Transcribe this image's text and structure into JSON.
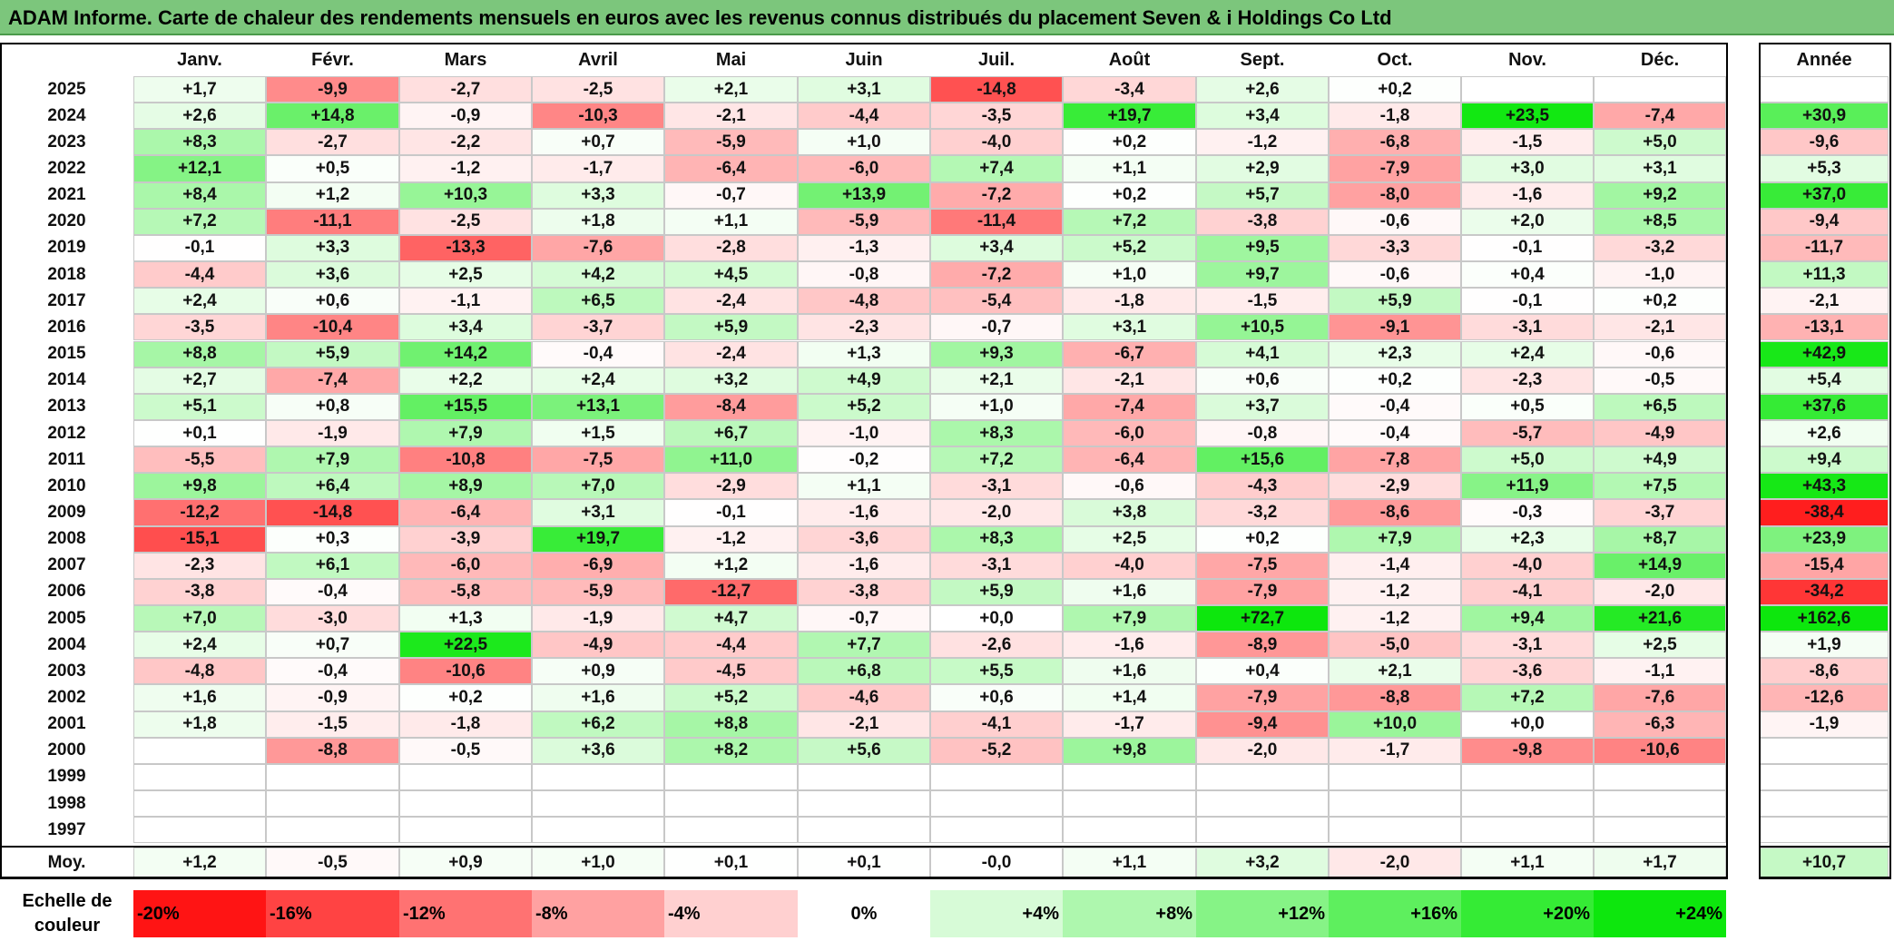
{
  "title": "ADAM Informe. Carte de chaleur des rendements mensuels en euros avec les revenus connus distribués du placement Seven & i Holdings Co Ltd",
  "chart_data": {
    "type": "heatmap",
    "columns": [
      "Janv.",
      "Févr.",
      "Mars",
      "Avril",
      "Mai",
      "Juin",
      "Juil.",
      "Août",
      "Sept.",
      "Oct.",
      "Nov.",
      "Déc."
    ],
    "annual_header": "Année",
    "rows": [
      {
        "year": "2025",
        "values": [
          1.7,
          -9.9,
          -2.7,
          -2.5,
          2.1,
          3.1,
          -14.8,
          -3.4,
          2.6,
          0.2,
          null,
          null
        ],
        "annual": null
      },
      {
        "year": "2024",
        "values": [
          2.6,
          14.8,
          -0.9,
          -10.3,
          -2.1,
          -4.4,
          -3.5,
          19.7,
          3.4,
          -1.8,
          23.5,
          -7.4
        ],
        "annual": 30.9
      },
      {
        "year": "2023",
        "values": [
          8.3,
          -2.7,
          -2.2,
          0.7,
          -5.9,
          1.0,
          -4.0,
          0.2,
          -1.2,
          -6.8,
          -1.5,
          5.0
        ],
        "annual": -9.6
      },
      {
        "year": "2022",
        "values": [
          12.1,
          0.5,
          -1.2,
          -1.7,
          -6.4,
          -6.0,
          7.4,
          1.1,
          2.9,
          -7.9,
          3.0,
          3.1
        ],
        "annual": 5.3
      },
      {
        "year": "2021",
        "values": [
          8.4,
          1.2,
          10.3,
          3.3,
          -0.7,
          13.9,
          -7.2,
          0.2,
          5.7,
          -8.0,
          -1.6,
          9.2
        ],
        "annual": 37.0
      },
      {
        "year": "2020",
        "values": [
          7.2,
          -11.1,
          -2.5,
          1.8,
          1.1,
          -5.9,
          -11.4,
          7.2,
          -3.8,
          -0.6,
          2.0,
          8.5
        ],
        "annual": -9.4
      },
      {
        "year": "2019",
        "values": [
          -0.1,
          3.3,
          -13.3,
          -7.6,
          -2.8,
          -1.3,
          3.4,
          5.2,
          9.5,
          -3.3,
          -0.1,
          -3.2
        ],
        "annual": -11.7
      },
      {
        "year": "2018",
        "values": [
          -4.4,
          3.6,
          2.5,
          4.2,
          4.5,
          -0.8,
          -7.2,
          1.0,
          9.7,
          -0.6,
          0.4,
          -1.0
        ],
        "annual": 11.3
      },
      {
        "year": "2017",
        "values": [
          2.4,
          0.6,
          -1.1,
          6.5,
          -2.4,
          -4.8,
          -5.4,
          -1.8,
          -1.5,
          5.9,
          -0.1,
          0.2
        ],
        "annual": -2.1
      },
      {
        "year": "2016",
        "values": [
          -3.5,
          -10.4,
          3.4,
          -3.7,
          5.9,
          -2.3,
          -0.7,
          3.1,
          10.5,
          -9.1,
          -3.1,
          -2.1
        ],
        "annual": -13.1
      },
      {
        "year": "2015",
        "values": [
          8.8,
          5.9,
          14.2,
          -0.4,
          -2.4,
          1.3,
          9.3,
          -6.7,
          4.1,
          2.3,
          2.4,
          -0.6
        ],
        "annual": 42.9
      },
      {
        "year": "2014",
        "values": [
          2.7,
          -7.4,
          2.2,
          2.4,
          3.2,
          4.9,
          2.1,
          -2.1,
          0.6,
          0.2,
          -2.3,
          -0.5
        ],
        "annual": 5.4
      },
      {
        "year": "2013",
        "values": [
          5.1,
          0.8,
          15.5,
          13.1,
          -8.4,
          5.2,
          1.0,
          -7.4,
          3.7,
          -0.4,
          0.5,
          6.5
        ],
        "annual": 37.6
      },
      {
        "year": "2012",
        "values": [
          0.1,
          -1.9,
          7.9,
          1.5,
          6.7,
          -1.0,
          8.3,
          -6.0,
          -0.8,
          -0.4,
          -5.7,
          -4.9
        ],
        "annual": 2.6
      },
      {
        "year": "2011",
        "values": [
          -5.5,
          7.9,
          -10.8,
          -7.5,
          11.0,
          -0.2,
          7.2,
          -6.4,
          15.6,
          -7.8,
          5.0,
          4.9
        ],
        "annual": 9.4
      },
      {
        "year": "2010",
        "values": [
          9.8,
          6.4,
          8.9,
          7.0,
          -2.9,
          1.1,
          -3.1,
          -0.6,
          -4.3,
          -2.9,
          11.9,
          7.5
        ],
        "annual": 43.3
      },
      {
        "year": "2009",
        "values": [
          -12.2,
          -14.8,
          -6.4,
          3.1,
          -0.1,
          -1.6,
          -2.0,
          3.8,
          -3.2,
          -8.6,
          -0.3,
          -3.7
        ],
        "annual": -38.4
      },
      {
        "year": "2008",
        "values": [
          -15.1,
          0.3,
          -3.9,
          19.7,
          -1.2,
          -3.6,
          8.3,
          2.5,
          0.2,
          7.9,
          2.3,
          8.7
        ],
        "annual": 23.9
      },
      {
        "year": "2007",
        "values": [
          -2.3,
          6.1,
          -6.0,
          -6.9,
          1.2,
          -1.6,
          -3.1,
          -4.0,
          -7.5,
          -1.4,
          -4.0,
          14.9
        ],
        "annual": -15.4
      },
      {
        "year": "2006",
        "values": [
          -3.8,
          -0.4,
          -5.8,
          -5.9,
          -12.7,
          -3.8,
          5.9,
          1.6,
          -7.9,
          -1.2,
          -4.1,
          -2.0
        ],
        "annual": -34.2
      },
      {
        "year": "2005",
        "values": [
          7.0,
          -3.0,
          1.3,
          -1.9,
          4.7,
          -0.7,
          0.0,
          7.9,
          72.7,
          -1.2,
          9.4,
          21.6
        ],
        "annual": 162.6
      },
      {
        "year": "2004",
        "values": [
          2.4,
          0.7,
          22.5,
          -4.9,
          -4.4,
          7.7,
          -2.6,
          -1.6,
          -8.9,
          -5.0,
          -3.1,
          2.5
        ],
        "annual": 1.9
      },
      {
        "year": "2003",
        "values": [
          -4.8,
          -0.4,
          -10.6,
          0.9,
          -4.5,
          6.8,
          5.5,
          1.6,
          0.4,
          2.1,
          -3.6,
          -1.1
        ],
        "annual": -8.6
      },
      {
        "year": "2002",
        "values": [
          1.6,
          -0.9,
          0.2,
          1.6,
          5.2,
          -4.6,
          0.6,
          1.4,
          -7.9,
          -8.8,
          7.2,
          -7.6
        ],
        "annual": -12.6
      },
      {
        "year": "2001",
        "values": [
          1.8,
          -1.5,
          -1.8,
          6.2,
          8.8,
          -2.1,
          -4.1,
          -1.7,
          -9.4,
          10.0,
          0.0,
          -6.3
        ],
        "annual": -1.9
      },
      {
        "year": "2000",
        "values": [
          null,
          -8.8,
          -0.5,
          3.6,
          8.2,
          5.6,
          -5.2,
          9.8,
          -2.0,
          -1.7,
          -9.8,
          -10.6
        ],
        "annual": null
      },
      {
        "year": "1999",
        "values": [
          null,
          null,
          null,
          null,
          null,
          null,
          null,
          null,
          null,
          null,
          null,
          null
        ],
        "annual": null
      },
      {
        "year": "1998",
        "values": [
          null,
          null,
          null,
          null,
          null,
          null,
          null,
          null,
          null,
          null,
          null,
          null
        ],
        "annual": null
      },
      {
        "year": "1997",
        "values": [
          null,
          null,
          null,
          null,
          null,
          null,
          null,
          null,
          null,
          null,
          null,
          null
        ],
        "annual": null
      }
    ],
    "average": {
      "label": "Moy.",
      "values": [
        1.2,
        -0.5,
        0.9,
        1.0,
        0.1,
        0.1,
        -0.0,
        1.1,
        3.2,
        -2.0,
        1.1,
        1.7
      ],
      "annual": 10.7
    },
    "scale": {
      "label": "Echelle de couleur",
      "steps": [
        {
          "value": -20,
          "text": "-20%"
        },
        {
          "value": -16,
          "text": "-16%"
        },
        {
          "value": -12,
          "text": "-12%"
        },
        {
          "value": -8,
          "text": "-8%"
        },
        {
          "value": -4,
          "text": "-4%"
        },
        {
          "value": 0,
          "text": "0%"
        },
        {
          "value": 4,
          "text": "+4%"
        },
        {
          "value": 8,
          "text": "+8%"
        },
        {
          "value": 12,
          "text": "+12%"
        },
        {
          "value": 16,
          "text": "+16%"
        },
        {
          "value": 20,
          "text": "+20%"
        },
        {
          "value": 24,
          "text": "+24%"
        }
      ]
    },
    "colors": {
      "negative_max": "#ff0000",
      "neutral": "#ffffff",
      "positive_max": "#00e600"
    }
  }
}
